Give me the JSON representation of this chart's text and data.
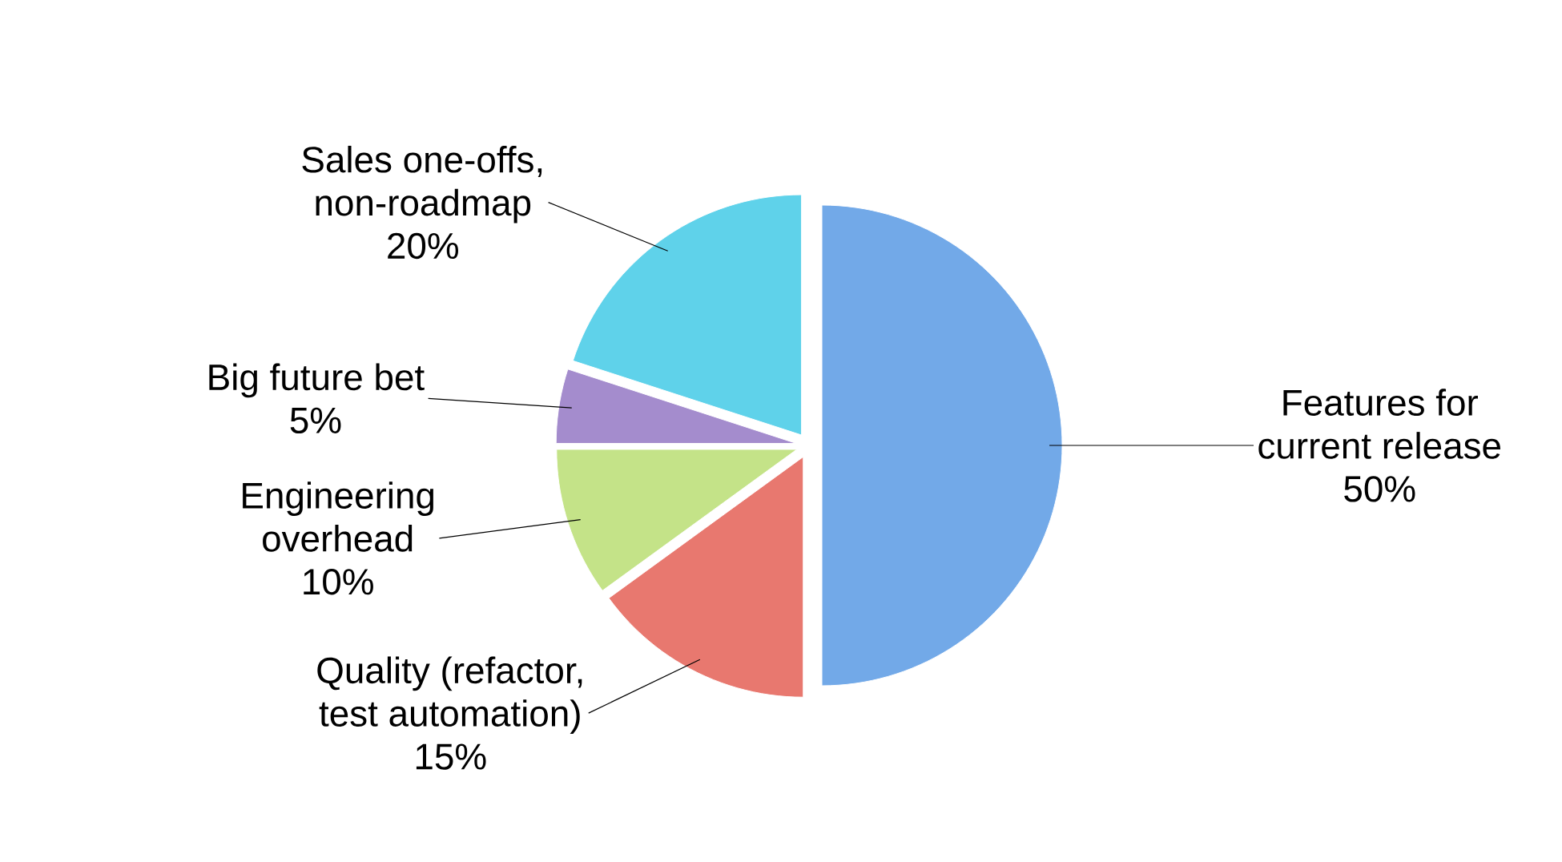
{
  "chart_data": {
    "type": "pie",
    "categories": [
      "Features for current release",
      "Quality (refactor, test automation)",
      "Engineering overhead",
      "Big future bet",
      "Sales one-offs, non-roadmap"
    ],
    "values": [
      50,
      15,
      10,
      5,
      20
    ],
    "value_labels": [
      "50%",
      "15%",
      "10%",
      "5%",
      "20%"
    ],
    "colors": [
      "#72a9e8",
      "#e8786f",
      "#c4e388",
      "#a48ccd",
      "#5fd2ea"
    ]
  }
}
